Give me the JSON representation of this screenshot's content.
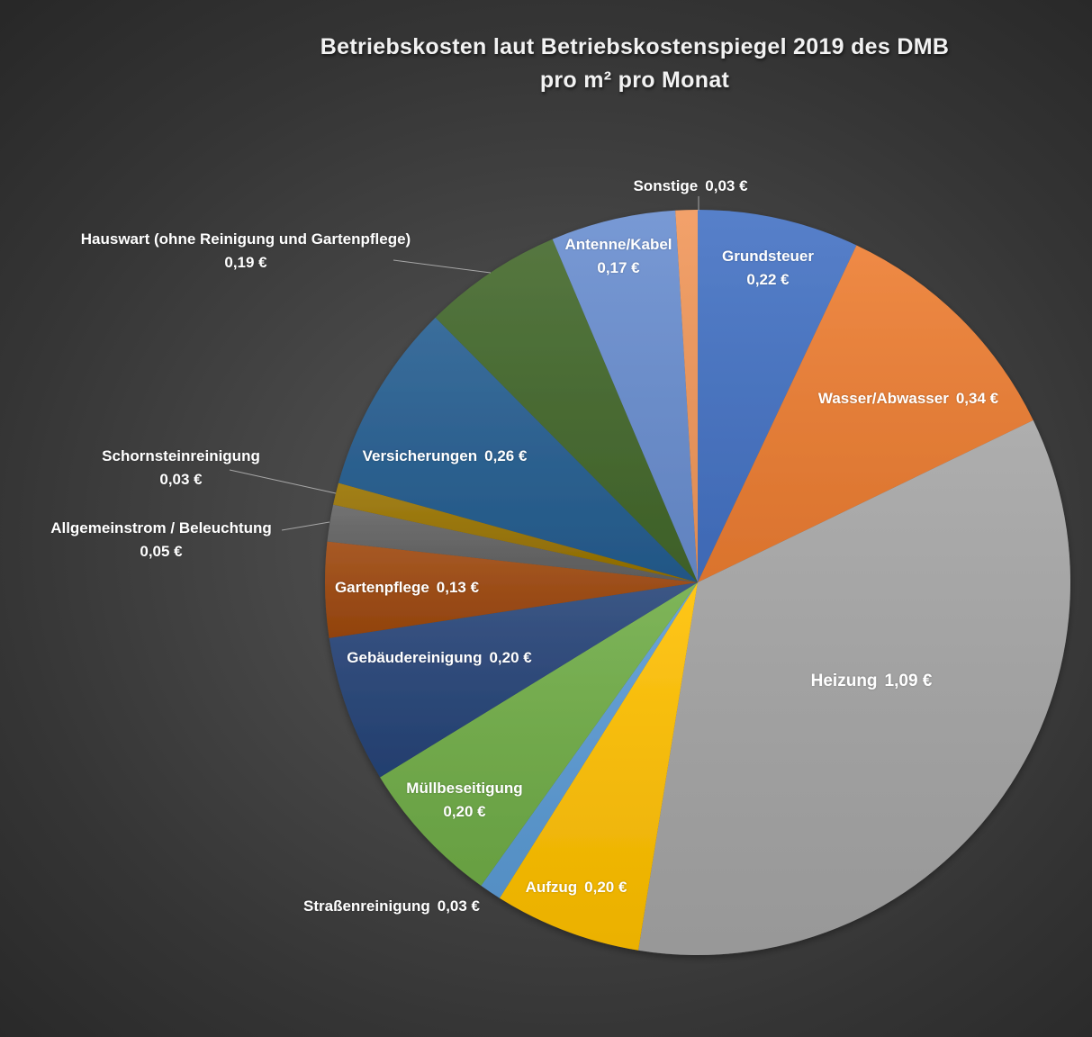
{
  "title": {
    "line1": "Betriebskosten laut Betriebskostenspiegel  2019 des DMB",
    "line2": "pro m² pro Monat"
  },
  "chart_data": {
    "type": "pie",
    "title": "Betriebskosten laut Betriebskostenspiegel 2019 des DMB pro m² pro Monat",
    "unit": "€ pro m² pro Monat",
    "start_angle": "12 o'clock, clockwise",
    "categories": [
      "Grundsteuer",
      "Wasser/Abwasser",
      "Heizung",
      "Aufzug",
      "Straßenreinigung",
      "Müllbeseitigung",
      "Gebäudereinigung",
      "Gartenpflege",
      "Allgemeinstrom / Beleuchtung",
      "Schornsteinreinigung",
      "Versicherungen",
      "Hauswart (ohne Reinigung und Gartenpflege)",
      "Antenne/Kabel",
      "Sonstige"
    ],
    "values": [
      0.22,
      0.34,
      1.09,
      0.2,
      0.03,
      0.2,
      0.2,
      0.13,
      0.05,
      0.03,
      0.26,
      0.19,
      0.17,
      0.03
    ],
    "slices": [
      {
        "label": "Grundsteuer",
        "value": 0.22,
        "value_label": "0,22 €",
        "color": "#4472C4"
      },
      {
        "label": "Wasser/Abwasser",
        "value": 0.34,
        "value_label": "0,34 €",
        "color": "#ED7D31"
      },
      {
        "label": "Heizung",
        "value": 1.09,
        "value_label": "1,09 €",
        "color": "#A5A5A5"
      },
      {
        "label": "Aufzug",
        "value": 0.2,
        "value_label": "0,20 €",
        "color": "#FFC000"
      },
      {
        "label": "Straßenreinigung",
        "value": 0.03,
        "value_label": "0,03 €",
        "color": "#5B9BD5"
      },
      {
        "label": "Müllbeseitigung",
        "value": 0.2,
        "value_label": "0,20 €",
        "color": "#70AD47"
      },
      {
        "label": "Gebäudereinigung",
        "value": 0.2,
        "value_label": "0,20 €",
        "color": "#264478"
      },
      {
        "label": "Gartenpflege",
        "value": 0.13,
        "value_label": "0,13 €",
        "color": "#9E480E"
      },
      {
        "label": "Allgemeinstrom / Beleuchtung",
        "value": 0.05,
        "value_label": "0,05 €",
        "color": "#636363"
      },
      {
        "label": "Schornsteinreinigung",
        "value": 0.03,
        "value_label": "0,03 €",
        "color": "#997300"
      },
      {
        "label": "Versicherungen",
        "value": 0.26,
        "value_label": "0,26 €",
        "color": "#255E91"
      },
      {
        "label": "Hauswart (ohne Reinigung und Gartenpflege)",
        "value": 0.19,
        "value_label": "0,19 €",
        "color": "#43682B"
      },
      {
        "label": "Antenne/Kabel",
        "value": 0.17,
        "value_label": "0,17 €",
        "color": "#698ED0"
      },
      {
        "label": "Sonstige",
        "value": 0.03,
        "value_label": "0,03 €",
        "color": "#F1975A"
      }
    ],
    "legend": "none (data labels on/next to slices)"
  }
}
